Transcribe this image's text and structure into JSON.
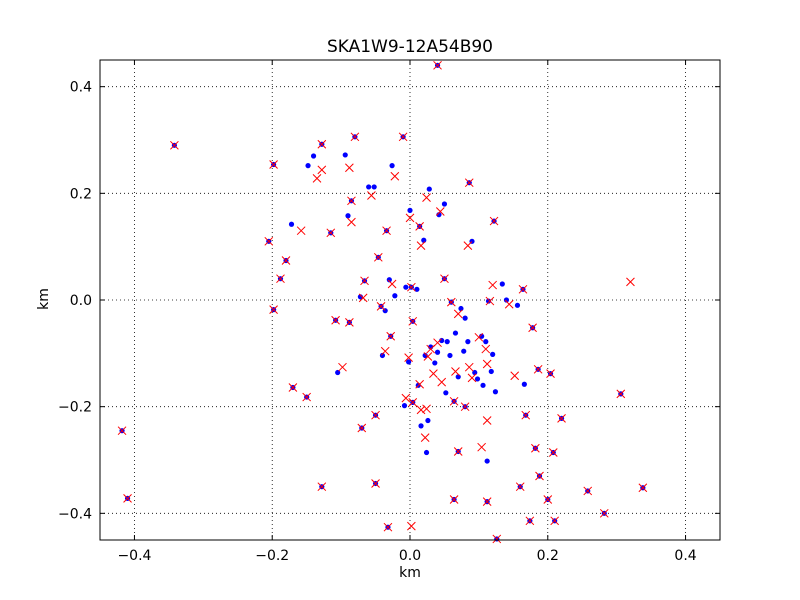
{
  "chart_data": {
    "type": "scatter",
    "title": "SKA1W9-12A54B90",
    "xlabel": "km",
    "ylabel": "km",
    "xlim": [
      -0.45,
      0.45
    ],
    "ylim": [
      -0.45,
      0.45
    ],
    "xticks": [
      -0.4,
      -0.2,
      0.0,
      0.2,
      0.4
    ],
    "yticks": [
      -0.4,
      -0.2,
      0.0,
      0.2,
      0.4
    ],
    "xtick_labels": [
      "−0.4",
      "−0.2",
      "0.0",
      "0.2",
      "0.4"
    ],
    "ytick_labels": [
      "−0.4",
      "−0.2",
      "0.0",
      "0.2",
      "0.4"
    ],
    "grid": true,
    "series": [
      {
        "marker": "dot",
        "color": "#0000ff",
        "points": [
          [
            -0.418,
            -0.245
          ],
          [
            -0.41,
            -0.372
          ],
          [
            -0.342,
            0.29
          ],
          [
            -0.198,
            0.254
          ],
          [
            -0.205,
            0.11
          ],
          [
            -0.198,
            -0.018
          ],
          [
            -0.188,
            0.04
          ],
          [
            -0.18,
            0.074
          ],
          [
            -0.17,
            -0.164
          ],
          [
            -0.172,
            0.142
          ],
          [
            -0.15,
            -0.182
          ],
          [
            -0.148,
            0.252
          ],
          [
            -0.14,
            0.27
          ],
          [
            -0.128,
            0.292
          ],
          [
            -0.128,
            -0.35
          ],
          [
            -0.115,
            0.126
          ],
          [
            -0.108,
            -0.038
          ],
          [
            -0.105,
            -0.136
          ],
          [
            -0.094,
            0.272
          ],
          [
            -0.09,
            0.158
          ],
          [
            -0.088,
            -0.042
          ],
          [
            -0.085,
            0.186
          ],
          [
            -0.08,
            0.306
          ],
          [
            -0.072,
            0.006
          ],
          [
            -0.07,
            -0.24
          ],
          [
            -0.066,
            0.036
          ],
          [
            -0.06,
            0.212
          ],
          [
            -0.052,
            0.212
          ],
          [
            -0.05,
            -0.216
          ],
          [
            -0.05,
            -0.344
          ],
          [
            -0.046,
            0.08
          ],
          [
            -0.042,
            -0.012
          ],
          [
            -0.04,
            -0.104
          ],
          [
            -0.036,
            -0.02
          ],
          [
            -0.034,
            0.13
          ],
          [
            -0.032,
            -0.426
          ],
          [
            -0.03,
            0.038
          ],
          [
            -0.028,
            -0.068
          ],
          [
            -0.026,
            0.252
          ],
          [
            -0.022,
            0.008
          ],
          [
            -0.01,
            0.306
          ],
          [
            -0.008,
            -0.198
          ],
          [
            -0.006,
            0.024
          ],
          [
            -0.002,
            -0.116
          ],
          [
            0.0,
            0.168
          ],
          [
            0.002,
            0.024
          ],
          [
            0.004,
            -0.04
          ],
          [
            0.004,
            -0.192
          ],
          [
            0.01,
            0.02
          ],
          [
            0.012,
            -0.16
          ],
          [
            0.014,
            0.138
          ],
          [
            0.016,
            -0.236
          ],
          [
            0.02,
            0.112
          ],
          [
            0.022,
            -0.104
          ],
          [
            0.024,
            -0.286
          ],
          [
            0.026,
            -0.226
          ],
          [
            0.028,
            0.208
          ],
          [
            0.03,
            -0.088
          ],
          [
            0.036,
            -0.118
          ],
          [
            0.04,
            0.44
          ],
          [
            0.04,
            -0.098
          ],
          [
            0.042,
            0.16
          ],
          [
            0.046,
            -0.076
          ],
          [
            0.05,
            0.18
          ],
          [
            0.05,
            0.04
          ],
          [
            0.052,
            -0.174
          ],
          [
            0.054,
            -0.078
          ],
          [
            0.058,
            -0.104
          ],
          [
            0.06,
            -0.004
          ],
          [
            0.064,
            -0.19
          ],
          [
            0.064,
            -0.374
          ],
          [
            0.066,
            -0.062
          ],
          [
            0.07,
            -0.284
          ],
          [
            0.07,
            -0.144
          ],
          [
            0.074,
            -0.016
          ],
          [
            0.078,
            -0.096
          ],
          [
            0.08,
            -0.034
          ],
          [
            0.08,
            -0.2
          ],
          [
            0.084,
            -0.078
          ],
          [
            0.086,
            0.22
          ],
          [
            0.09,
            0.11
          ],
          [
            0.094,
            -0.136
          ],
          [
            0.098,
            -0.148
          ],
          [
            0.104,
            -0.068
          ],
          [
            0.106,
            -0.16
          ],
          [
            0.11,
            -0.078
          ],
          [
            0.112,
            -0.302
          ],
          [
            0.112,
            -0.378
          ],
          [
            0.114,
            -0.002
          ],
          [
            0.118,
            -0.134
          ],
          [
            0.12,
            -0.102
          ],
          [
            0.122,
            0.148
          ],
          [
            0.124,
            -0.172
          ],
          [
            0.126,
            -0.448
          ],
          [
            0.134,
            0.03
          ],
          [
            0.14,
            0.0
          ],
          [
            0.156,
            -0.01
          ],
          [
            0.16,
            -0.35
          ],
          [
            0.164,
            0.02
          ],
          [
            0.166,
            -0.158
          ],
          [
            0.168,
            -0.216
          ],
          [
            0.174,
            -0.414
          ],
          [
            0.178,
            -0.052
          ],
          [
            0.182,
            -0.278
          ],
          [
            0.186,
            -0.13
          ],
          [
            0.188,
            -0.33
          ],
          [
            0.2,
            -0.374
          ],
          [
            0.204,
            -0.138
          ],
          [
            0.208,
            -0.286
          ],
          [
            0.21,
            -0.414
          ],
          [
            0.22,
            -0.222
          ],
          [
            0.258,
            -0.358
          ],
          [
            0.282,
            -0.4
          ],
          [
            0.306,
            -0.176
          ],
          [
            0.338,
            -0.352
          ]
        ]
      },
      {
        "marker": "x",
        "color": "#ff0000",
        "points": [
          [
            -0.418,
            -0.245
          ],
          [
            -0.41,
            -0.372
          ],
          [
            -0.342,
            0.29
          ],
          [
            -0.198,
            0.254
          ],
          [
            -0.205,
            0.11
          ],
          [
            -0.198,
            -0.018
          ],
          [
            -0.188,
            0.04
          ],
          [
            -0.18,
            0.074
          ],
          [
            -0.17,
            -0.164
          ],
          [
            -0.158,
            0.13
          ],
          [
            -0.15,
            -0.182
          ],
          [
            -0.135,
            0.228
          ],
          [
            -0.128,
            0.244
          ],
          [
            -0.128,
            0.292
          ],
          [
            -0.128,
            -0.35
          ],
          [
            -0.115,
            0.126
          ],
          [
            -0.108,
            -0.038
          ],
          [
            -0.098,
            -0.126
          ],
          [
            -0.088,
            0.248
          ],
          [
            -0.085,
            0.146
          ],
          [
            -0.088,
            -0.042
          ],
          [
            -0.085,
            0.186
          ],
          [
            -0.08,
            0.306
          ],
          [
            -0.068,
            0.004
          ],
          [
            -0.07,
            -0.24
          ],
          [
            -0.066,
            0.036
          ],
          [
            -0.056,
            0.196
          ],
          [
            -0.05,
            -0.216
          ],
          [
            -0.05,
            -0.344
          ],
          [
            -0.046,
            0.08
          ],
          [
            -0.042,
            -0.012
          ],
          [
            -0.036,
            -0.096
          ],
          [
            -0.034,
            0.13
          ],
          [
            -0.032,
            -0.426
          ],
          [
            -0.026,
            0.03
          ],
          [
            -0.028,
            -0.068
          ],
          [
            -0.022,
            0.232
          ],
          [
            -0.01,
            0.306
          ],
          [
            -0.006,
            -0.184
          ],
          [
            -0.002,
            -0.108
          ],
          [
            0.0,
            0.154
          ],
          [
            0.002,
            0.024
          ],
          [
            0.004,
            -0.04
          ],
          [
            0.004,
            -0.192
          ],
          [
            0.002,
            -0.424
          ],
          [
            0.014,
            -0.158
          ],
          [
            0.016,
            0.102
          ],
          [
            0.014,
            0.138
          ],
          [
            0.016,
            -0.206
          ],
          [
            0.022,
            -0.258
          ],
          [
            0.024,
            0.192
          ],
          [
            0.024,
            -0.204
          ],
          [
            0.026,
            -0.106
          ],
          [
            0.03,
            -0.092
          ],
          [
            0.034,
            -0.138
          ],
          [
            0.04,
            0.44
          ],
          [
            0.04,
            -0.08
          ],
          [
            0.044,
            0.166
          ],
          [
            0.046,
            -0.154
          ],
          [
            0.05,
            0.04
          ],
          [
            0.06,
            -0.004
          ],
          [
            0.064,
            -0.19
          ],
          [
            0.064,
            -0.374
          ],
          [
            0.066,
            -0.134
          ],
          [
            0.07,
            -0.284
          ],
          [
            0.07,
            -0.026
          ],
          [
            0.08,
            -0.2
          ],
          [
            0.084,
            0.102
          ],
          [
            0.086,
            0.22
          ],
          [
            0.086,
            -0.126
          ],
          [
            0.09,
            -0.146
          ],
          [
            0.1,
            -0.07
          ],
          [
            0.104,
            -0.276
          ],
          [
            0.11,
            -0.092
          ],
          [
            0.112,
            -0.12
          ],
          [
            0.112,
            -0.226
          ],
          [
            0.112,
            -0.378
          ],
          [
            0.116,
            -0.002
          ],
          [
            0.12,
            0.028
          ],
          [
            0.122,
            0.148
          ],
          [
            0.126,
            -0.448
          ],
          [
            0.144,
            -0.008
          ],
          [
            0.152,
            -0.142
          ],
          [
            0.16,
            -0.35
          ],
          [
            0.164,
            0.02
          ],
          [
            0.168,
            -0.216
          ],
          [
            0.174,
            -0.414
          ],
          [
            0.178,
            -0.052
          ],
          [
            0.182,
            -0.278
          ],
          [
            0.186,
            -0.13
          ],
          [
            0.188,
            -0.33
          ],
          [
            0.2,
            -0.374
          ],
          [
            0.204,
            -0.138
          ],
          [
            0.208,
            -0.286
          ],
          [
            0.21,
            -0.414
          ],
          [
            0.22,
            -0.222
          ],
          [
            0.258,
            -0.358
          ],
          [
            0.282,
            -0.4
          ],
          [
            0.306,
            -0.176
          ],
          [
            0.32,
            0.034
          ],
          [
            0.338,
            -0.352
          ]
        ]
      }
    ]
  }
}
